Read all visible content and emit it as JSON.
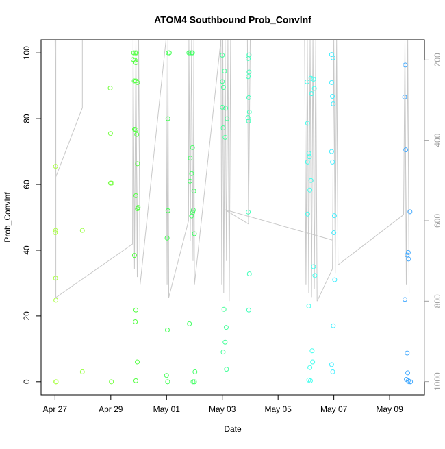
{
  "chart_data": {
    "type": "scatter",
    "title": "ATOM4 Southbound Prob_ConvInf",
    "x_label": "Date",
    "y_label": "Prob_ConvInf",
    "xlim": [
      -0.5,
      13.25
    ],
    "xticks": [
      {
        "value": 0,
        "label": "Apr 27"
      },
      {
        "value": 2,
        "label": "Apr 29"
      },
      {
        "value": 4,
        "label": "May 01"
      },
      {
        "value": 6,
        "label": "May 03"
      },
      {
        "value": 8,
        "label": "May 05"
      },
      {
        "value": 10,
        "label": "May 07"
      },
      {
        "value": 12,
        "label": "May 09"
      }
    ],
    "ylim": [
      -4,
      104
    ],
    "yticks": [
      0,
      20,
      40,
      60,
      80,
      100
    ],
    "y2lim": [
      1033,
      150
    ],
    "y2ticks": [
      200,
      400,
      600,
      800,
      1000
    ],
    "y2_color": "#a0a0a0",
    "series": [
      {
        "color": "#aaff44",
        "x": [
          0.02,
          0.02,
          0.01,
          0.02,
          0.03,
          0.03,
          0.04
        ],
        "values": [
          65.5,
          46,
          45.3,
          31.5,
          24.8,
          0,
          0
        ]
      },
      {
        "color": "#99ff44",
        "x": [
          0.98,
          0.98
        ],
        "values": [
          46,
          3
        ]
      },
      {
        "color": "#77ff44",
        "x": [
          1.98,
          1.99,
          1.99,
          2.03,
          2.02
        ],
        "values": [
          89.3,
          75.5,
          60.4,
          60.4,
          0
        ]
      },
      {
        "color": "#55ff44",
        "x": [
          2.82,
          2.88,
          2.92,
          2.8,
          2.87,
          2.9,
          2.84,
          2.9,
          2.96,
          2.85,
          2.9,
          2.93,
          2.96,
          2.9,
          2.98,
          2.96,
          2.85,
          2.9,
          2.88,
          2.95,
          2.9
        ],
        "values": [
          100,
          100,
          100,
          98,
          97.8,
          97,
          91.5,
          91.5,
          91,
          76.8,
          76.7,
          75.2,
          66.3,
          56.6,
          53,
          52.6,
          38.4,
          21.8,
          18.2,
          6,
          0.3
        ]
      },
      {
        "color": "#44ff55",
        "x": [
          4.06,
          4.1,
          4.05,
          4.05,
          4.02,
          4.03,
          4.0,
          4.04
        ],
        "values": [
          100,
          100,
          80,
          52,
          43.7,
          15.7,
          1.9,
          0
        ]
      },
      {
        "color": "#44ff66",
        "x": [
          4.8,
          4.85,
          4.9,
          4.93,
          4.93,
          4.85,
          4.9,
          4.84,
          4.98,
          4.96,
          4.94,
          4.9,
          5.0,
          4.82,
          5.02,
          4.95,
          5.0
        ],
        "values": [
          100,
          100,
          100,
          100,
          71.2,
          68,
          63.3,
          61,
          58,
          52.2,
          51.5,
          50.4,
          45,
          17.6,
          3,
          0,
          0
        ]
      },
      {
        "color": "#44ff99",
        "x": [
          6.0,
          6.08,
          6.0,
          6.04,
          6.0,
          6.12,
          6.17,
          6.03,
          6.1,
          6.06,
          6.14,
          6.1,
          6.03,
          6.15
        ],
        "values": [
          99.3,
          94.5,
          91.3,
          89.5,
          83.5,
          83.2,
          80,
          77.2,
          74.3,
          22,
          16.5,
          12,
          9,
          3.8
        ]
      },
      {
        "color": "#44ffbb",
        "x": [
          6.96,
          6.93,
          6.96,
          6.93,
          6.95,
          6.97,
          6.92,
          6.94,
          6.93,
          6.97,
          6.95
        ],
        "values": [
          99.4,
          98.3,
          94.2,
          92.8,
          86.4,
          82,
          80.3,
          79.3,
          51.6,
          32.8,
          21.8
        ]
      },
      {
        "color": "#44ffee",
        "x": [
          9.18,
          9.27,
          9.04,
          9.3,
          9.2,
          9.06,
          9.1,
          9.12,
          9.06,
          9.18,
          9.14,
          9.06,
          9.27,
          9.32,
          9.1,
          9.22,
          9.24,
          9.14,
          9.1,
          9.16
        ],
        "values": [
          92.3,
          92,
          91.2,
          89.2,
          87.6,
          78.6,
          69.5,
          68.4,
          66.8,
          61.2,
          58.3,
          51,
          35,
          32.3,
          23,
          9.4,
          6,
          4.3,
          0.5,
          0.3
        ]
      },
      {
        "color": "#44eeff",
        "x": [
          9.92,
          9.97,
          9.92,
          9.95,
          9.98,
          9.92,
          9.95,
          10.02,
          10.0,
          10.03,
          9.98,
          9.92,
          9.96
        ],
        "values": [
          99.5,
          98.5,
          91,
          86.8,
          84.5,
          70,
          66.8,
          50.5,
          45.3,
          31,
          17,
          5.2,
          3
        ]
      },
      {
        "color": "#44aaff",
        "x": [
          12.56,
          12.54,
          12.58,
          12.73,
          12.67,
          12.63,
          12.68,
          12.55,
          12.63,
          12.65,
          12.6,
          12.67,
          12.7,
          12.75
        ],
        "values": [
          96.3,
          86.6,
          70.5,
          51.7,
          39.3,
          38.5,
          37.3,
          25,
          8.7,
          2.7,
          0.7,
          0.3,
          0,
          0
        ]
      },
      {
        "type": "line",
        "axis": "y2",
        "color": "#c8c8c8",
        "x": [
          0,
          0.03,
          0.98,
          0.98,
          null,
          0.03,
          0.03,
          2.78,
          2.8,
          2.85,
          2.9,
          2.95,
          3.0,
          3.05,
          3.98,
          4.02,
          4.05,
          4.08,
          4.79,
          4.8,
          4.85,
          4.9,
          4.95,
          4.98,
          5.0,
          5.95,
          5.98,
          6.02,
          6.05,
          6.1,
          6.15,
          6.2,
          6.25,
          6.3,
          null,
          6.1,
          6.94,
          6.9,
          6.94,
          7.0,
          null,
          6.12,
          9.94,
          null,
          8.95,
          9.0,
          9.05,
          9.1,
          9.15,
          9.2,
          9.25,
          9.3,
          9.35,
          9.4,
          9.95,
          10.0,
          10.05,
          10.1,
          10.15,
          12.5,
          12.55,
          12.6,
          12.65,
          12.7
        ],
        "values": [
          150,
          491,
          319,
          150,
          null,
          150,
          791,
          658,
          150,
          720,
          150,
          740,
          150,
          760,
          150,
          760,
          150,
          791,
          600,
          150,
          650,
          150,
          700,
          150,
          760,
          150,
          760,
          150,
          780,
          150,
          700,
          150,
          800,
          150,
          null,
          573,
          608,
          150,
          608,
          150,
          null,
          573,
          648,
          null,
          150,
          760,
          150,
          780,
          150,
          790,
          150,
          770,
          150,
          800,
          720,
          150,
          730,
          150,
          710,
          585,
          150,
          760,
          150,
          780
        ]
      }
    ]
  }
}
